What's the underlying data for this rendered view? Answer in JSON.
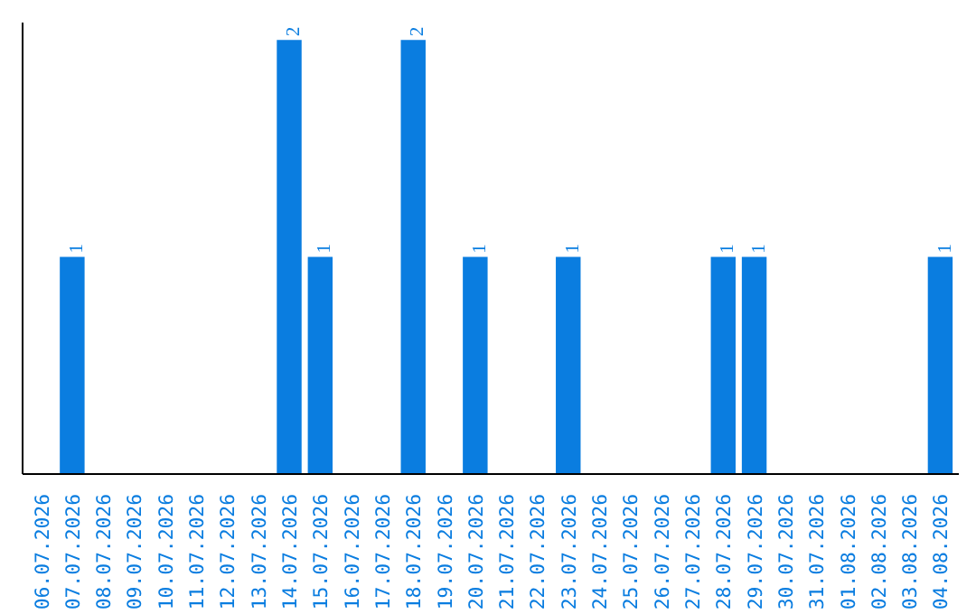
{
  "chart_data": {
    "type": "bar",
    "categories": [
      "06.07.2026",
      "07.07.2026",
      "08.07.2026",
      "09.07.2026",
      "10.07.2026",
      "11.07.2026",
      "12.07.2026",
      "13.07.2026",
      "14.07.2026",
      "15.07.2026",
      "16.07.2026",
      "17.07.2026",
      "18.07.2026",
      "19.07.2026",
      "20.07.2026",
      "21.07.2026",
      "22.07.2026",
      "23.07.2026",
      "24.07.2026",
      "25.07.2026",
      "26.07.2026",
      "27.07.2026",
      "28.07.2026",
      "29.07.2026",
      "30.07.2026",
      "31.07.2026",
      "01.08.2026",
      "02.08.2026",
      "03.08.2026",
      "04.08.2026"
    ],
    "values": [
      0,
      1,
      0,
      0,
      0,
      0,
      0,
      0,
      2,
      1,
      0,
      0,
      2,
      0,
      1,
      0,
      0,
      1,
      0,
      0,
      0,
      0,
      1,
      1,
      0,
      0,
      0,
      0,
      0,
      1
    ],
    "value_labels": [
      null,
      "1",
      null,
      null,
      null,
      null,
      null,
      null,
      "2",
      "1",
      null,
      null,
      "2",
      null,
      "1",
      null,
      null,
      "1",
      null,
      null,
      null,
      null,
      "1",
      "1",
      null,
      null,
      null,
      null,
      null,
      "1"
    ],
    "color": "#0a7de0",
    "tick_labels": "x",
    "grid": false
  }
}
